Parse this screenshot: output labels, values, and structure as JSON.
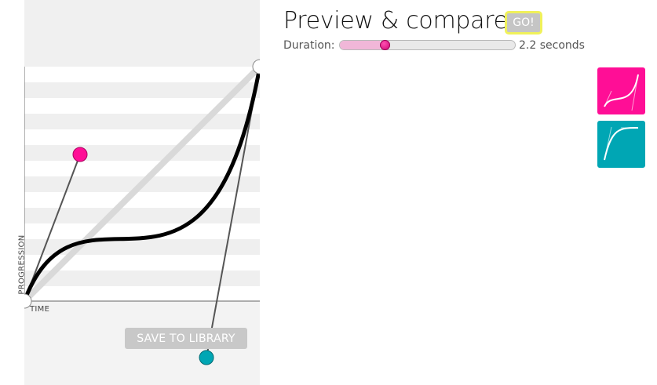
{
  "editor": {
    "x_axis_label": "TIME",
    "y_axis_label": "PROGRESSION",
    "save_button_label": "SAVE TO LIBRARY",
    "handle1_color": "#ff0e96",
    "handle2_color": "#00a6b4",
    "curve_color": "#000000"
  },
  "preview": {
    "title": "Preview & compare",
    "go_label": "GO!",
    "duration_label": "Duration:",
    "duration_value": "2.2 seconds",
    "duration_fraction": 0.23
  },
  "library": {
    "items": [
      {
        "name": "current-curve",
        "color": "#ff0e96"
      },
      {
        "name": "saved-curve",
        "color": "#00a6b4"
      }
    ]
  }
}
